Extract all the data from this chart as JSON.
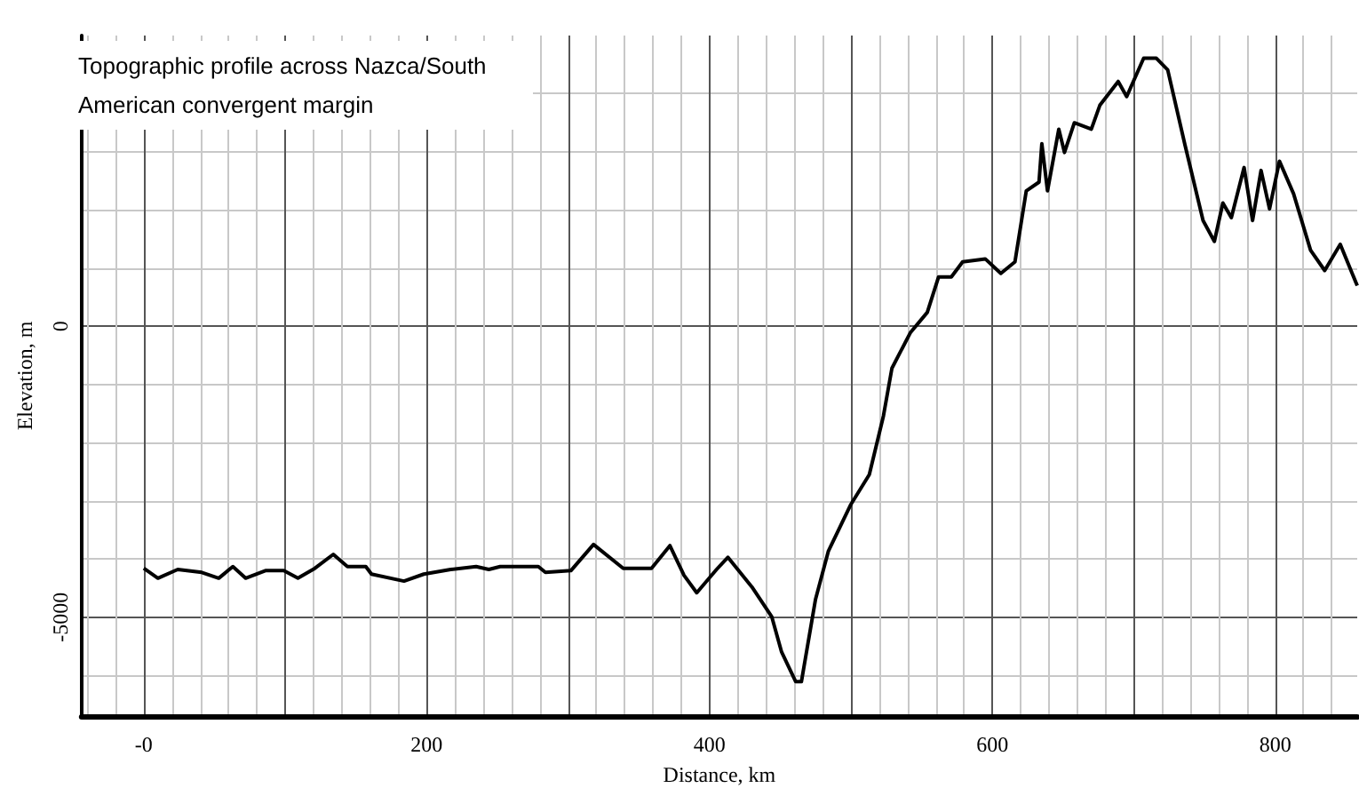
{
  "chart_data": {
    "type": "line",
    "title": "Topographic profile across Nazca/South American convergent margin",
    "xlabel": "Distance, km",
    "ylabel": "Elevation, m",
    "grid": true,
    "marker": "none",
    "xlim": [
      -44,
      858
    ],
    "ylim": [
      -6700,
      5000
    ],
    "xticks": [
      {
        "value": -40,
        "label": null
      },
      {
        "value": -20,
        "label": null
      },
      {
        "value": 0,
        "label": "-0"
      },
      {
        "value": 20,
        "label": null
      },
      {
        "value": 40,
        "label": null
      },
      {
        "value": 60,
        "label": null
      },
      {
        "value": 80,
        "label": null
      },
      {
        "value": 100,
        "label": null
      },
      {
        "value": 120,
        "label": null
      },
      {
        "value": 140,
        "label": null
      },
      {
        "value": 160,
        "label": null
      },
      {
        "value": 180,
        "label": null
      },
      200,
      {
        "value": 220,
        "label": null
      },
      {
        "value": 240,
        "label": null
      },
      {
        "value": 260,
        "label": null
      },
      {
        "value": 280,
        "label": null
      },
      {
        "value": 300,
        "label": null
      },
      {
        "value": 320,
        "label": null
      },
      {
        "value": 340,
        "label": null
      },
      {
        "value": 360,
        "label": null
      },
      {
        "value": 380,
        "label": null
      },
      400,
      {
        "value": 420,
        "label": null
      },
      {
        "value": 440,
        "label": null
      },
      {
        "value": 460,
        "label": null
      },
      {
        "value": 480,
        "label": null
      },
      {
        "value": 500,
        "label": null
      },
      {
        "value": 520,
        "label": null
      },
      {
        "value": 540,
        "label": null
      },
      {
        "value": 560,
        "label": null
      },
      {
        "value": 580,
        "label": null
      },
      600,
      {
        "value": 620,
        "label": null
      },
      {
        "value": 640,
        "label": null
      },
      {
        "value": 660,
        "label": null
      },
      {
        "value": 680,
        "label": null
      },
      {
        "value": 700,
        "label": null
      },
      {
        "value": 720,
        "label": null
      },
      {
        "value": 740,
        "label": null
      },
      {
        "value": 760,
        "label": null
      },
      {
        "value": 780,
        "label": null
      },
      800,
      {
        "value": 820,
        "label": null
      },
      {
        "value": 840,
        "label": null
      }
    ],
    "yticks": [
      {
        "value": -6000,
        "label": null
      },
      -5000,
      {
        "value": -4000,
        "label": null
      },
      {
        "value": -3000,
        "label": null
      },
      {
        "value": -2000,
        "label": null
      },
      {
        "value": -1000,
        "label": null
      },
      0,
      {
        "value": 1000,
        "label": null
      },
      {
        "value": 2000,
        "label": null
      },
      {
        "value": 3000,
        "label": null
      },
      {
        "value": 4000,
        "label": null
      }
    ],
    "series": [
      {
        "color": "#000000",
        "x": [
          0,
          10,
          24,
          41,
          53,
          63,
          72,
          86,
          99,
          109,
          121,
          134,
          144,
          157,
          161,
          184,
          198,
          217,
          235,
          244,
          252,
          279,
          284,
          302,
          318,
          339,
          359,
          372,
          382,
          391,
          405,
          413,
          430,
          444,
          451,
          461,
          465,
          475,
          484,
          500,
          513,
          523,
          529,
          542,
          554,
          562,
          571,
          579,
          595,
          606,
          616,
          624,
          633,
          635,
          639,
          647,
          651,
          658,
          670,
          676,
          689,
          695,
          707,
          716,
          724,
          736,
          749,
          757,
          763,
          769,
          778,
          784,
          790,
          796,
          803,
          813,
          825,
          835,
          846,
          858
        ],
        "values": [
          -4160,
          -4330,
          -4180,
          -4230,
          -4330,
          -4130,
          -4330,
          -4200,
          -4200,
          -4330,
          -4160,
          -3920,
          -4130,
          -4130,
          -4260,
          -4380,
          -4260,
          -4180,
          -4130,
          -4180,
          -4130,
          -4130,
          -4230,
          -4200,
          -3750,
          -4160,
          -4160,
          -3770,
          -4280,
          -4580,
          -4180,
          -3970,
          -4480,
          -4990,
          -5600,
          -6110,
          -6110,
          -4690,
          -3870,
          -3060,
          -2550,
          -1540,
          -720,
          -110,
          240,
          850,
          850,
          1110,
          1160,
          910,
          1110,
          2330,
          2480,
          3140,
          2330,
          3390,
          2990,
          3500,
          3390,
          3800,
          4210,
          3950,
          4610,
          4610,
          4410,
          3140,
          1820,
          1460,
          2120,
          1870,
          2730,
          1820,
          2680,
          2020,
          2840,
          2280,
          1310,
          960,
          1410,
          700
        ]
      }
    ]
  }
}
